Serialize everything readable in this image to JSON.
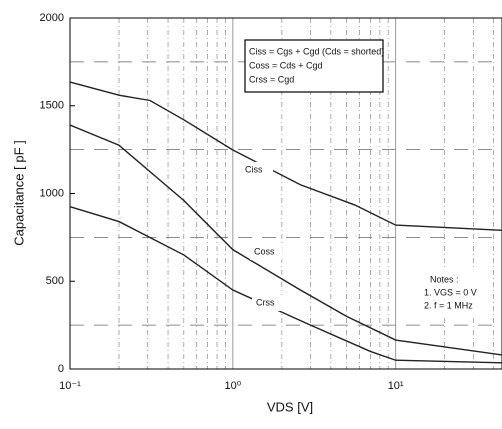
{
  "chart_data": {
    "type": "line",
    "x_label": "VDS [V]",
    "y_label": "Capacitance [ pF ]",
    "log_x": true,
    "xlim": [
      0.1,
      45
    ],
    "ylim": [
      0,
      2000
    ],
    "xticks": [
      {
        "value": 0.1,
        "label": "10⁻¹"
      },
      {
        "value": 1,
        "label": "10⁰"
      },
      {
        "value": 10,
        "label": "10¹"
      }
    ],
    "yticks": [
      0,
      500,
      1000,
      1500,
      2000
    ],
    "x_minor_grid": [
      0.2,
      0.3,
      0.4,
      0.5,
      0.6,
      0.7,
      0.8,
      0.9,
      2,
      3,
      4,
      5,
      6,
      7,
      8,
      9,
      20,
      30,
      40
    ],
    "y_minor_grid": [
      250,
      750,
      1250,
      1750
    ],
    "series": [
      {
        "name": "Ciss",
        "color": "#222",
        "x": [
          0.1,
          0.2,
          0.31,
          0.5,
          1,
          2.6,
          5.6,
          10,
          45
        ],
        "values": [
          1635,
          1560,
          1530,
          1420,
          1248,
          1050,
          935,
          820,
          790
        ]
      },
      {
        "name": "Coss",
        "color": "#222",
        "x": [
          0.1,
          0.2,
          0.5,
          1,
          2.6,
          5,
          10,
          45
        ],
        "values": [
          1390,
          1275,
          960,
          680,
          450,
          300,
          165,
          80
        ]
      },
      {
        "name": "Crss",
        "color": "#222",
        "x": [
          0.1,
          0.2,
          0.5,
          1,
          3,
          7,
          10,
          45
        ],
        "values": [
          925,
          840,
          650,
          450,
          250,
          100,
          50,
          35
        ]
      }
    ],
    "formulas": [
      "Ciss = Cgs + Cgd (Cds = shorted)",
      "Coss = Cds + Cgd",
      "Crss = Cgd"
    ],
    "notes": [
      "Notes :",
      "1. VGS = 0 V",
      "2. f = 1 MHz"
    ]
  }
}
